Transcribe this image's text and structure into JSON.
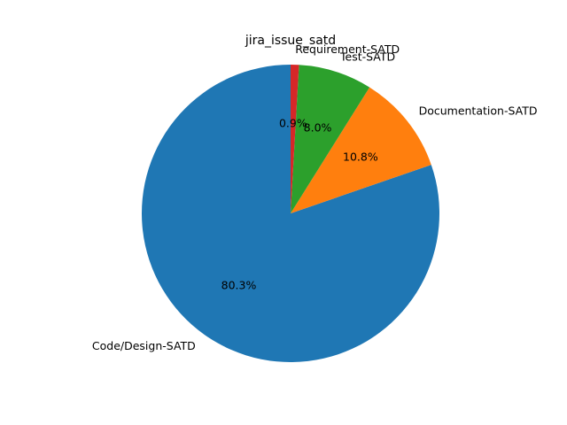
{
  "chart_data": {
    "type": "pie",
    "title": "jira_issue_satd",
    "categories": [
      "Code/Design-SATD",
      "Documentation-SATD",
      "Test-SATD",
      "Requirement-SATD"
    ],
    "values": [
      80.3,
      10.8,
      8.0,
      0.9
    ],
    "value_labels": [
      "80.3%",
      "10.8%",
      "8.0%",
      "0.9%"
    ],
    "colors": [
      "#1f77b4",
      "#ff7f0e",
      "#2ca02c",
      "#d62728"
    ],
    "start_angle_deg": 90,
    "direction": "counterclockwise",
    "legend": "none"
  }
}
